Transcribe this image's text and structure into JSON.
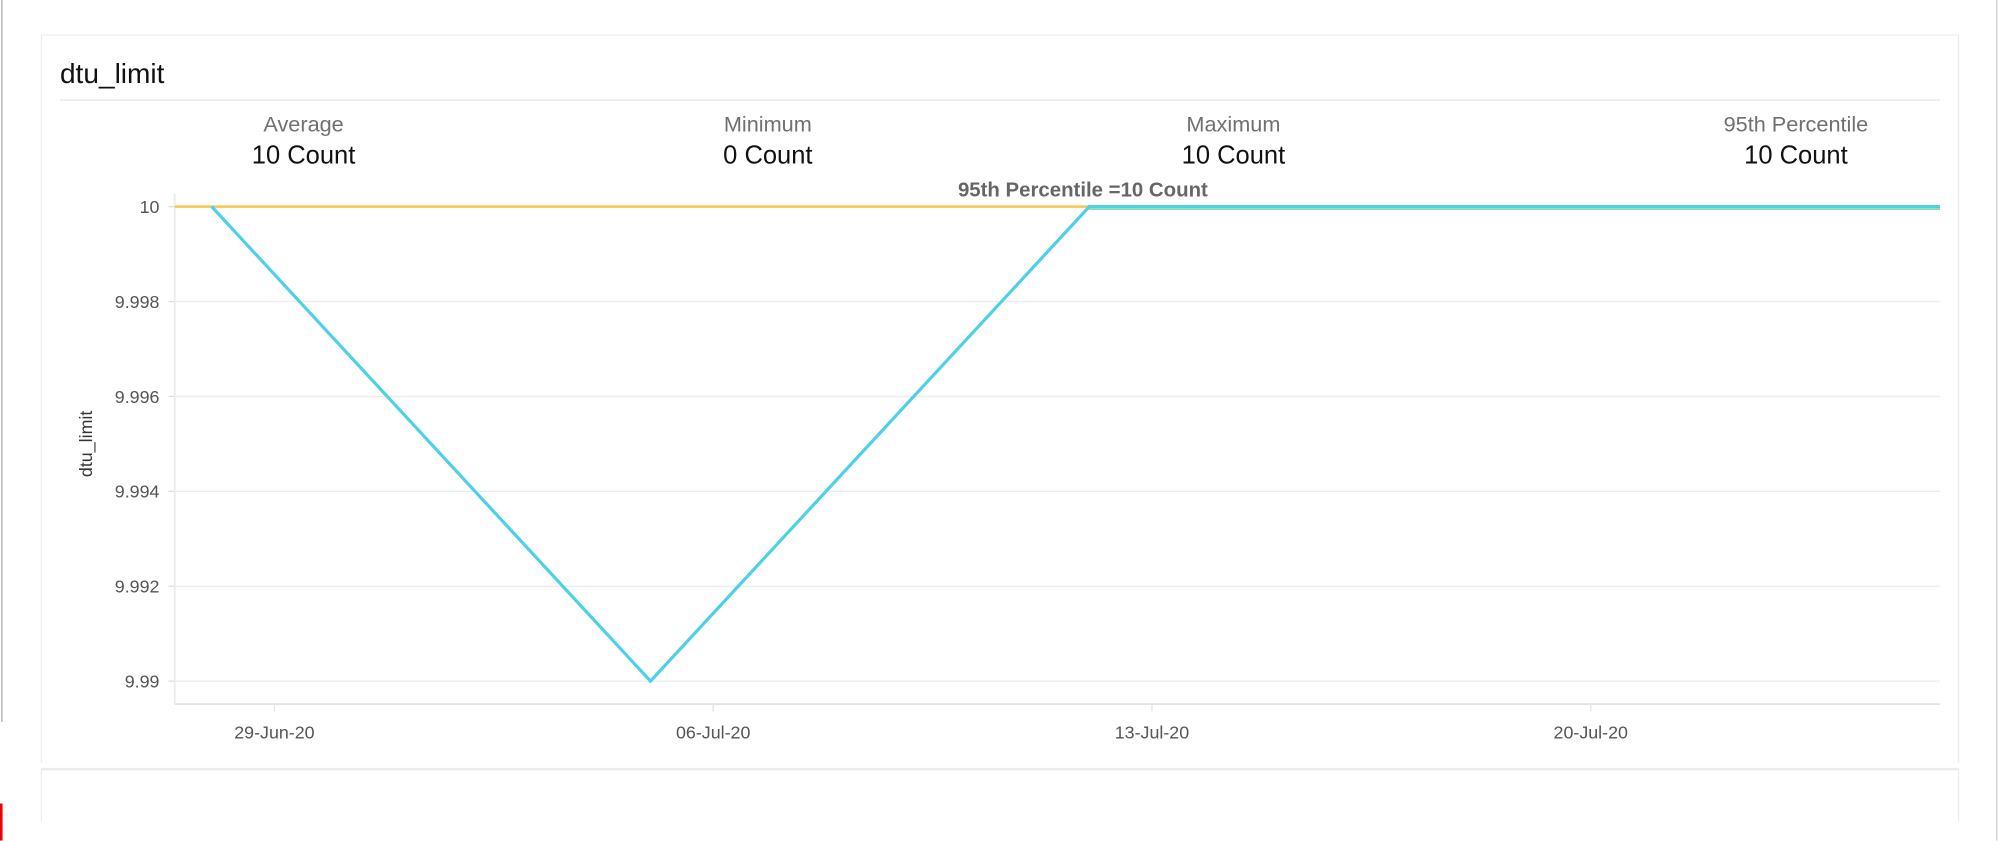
{
  "panel": {
    "title": "dtu_limit"
  },
  "stats": [
    {
      "label": "Average",
      "value": "10 Count"
    },
    {
      "label": "Minimum",
      "value": "0 Count"
    },
    {
      "label": "Maximum",
      "value": "10 Count"
    },
    {
      "label": "95th Percentile",
      "value": "10 Count"
    }
  ],
  "chart_data": {
    "type": "line",
    "title": "",
    "ylabel": "dtu_limit",
    "xlabel": "",
    "ylim": [
      9.99,
      10
    ],
    "yticks": [
      "9.99",
      "9.992",
      "9.994",
      "9.996",
      "9.998",
      "10"
    ],
    "xticks": [
      "29-Jun-20",
      "06-Jul-20",
      "13-Jul-20",
      "20-Jul-20"
    ],
    "grid": true,
    "series": [
      {
        "color": "#4dd0e8",
        "x": [
          "2020-06-28",
          "2020-07-05",
          "2020-07-12",
          "2020-07-19",
          "2020-07-26"
        ],
        "y": [
          10,
          9.99,
          10,
          10,
          10
        ]
      }
    ],
    "annotations": [
      {
        "type": "hline",
        "y": 10,
        "color": "#f2c94c",
        "label": "95th Percentile =10 Count"
      }
    ]
  }
}
